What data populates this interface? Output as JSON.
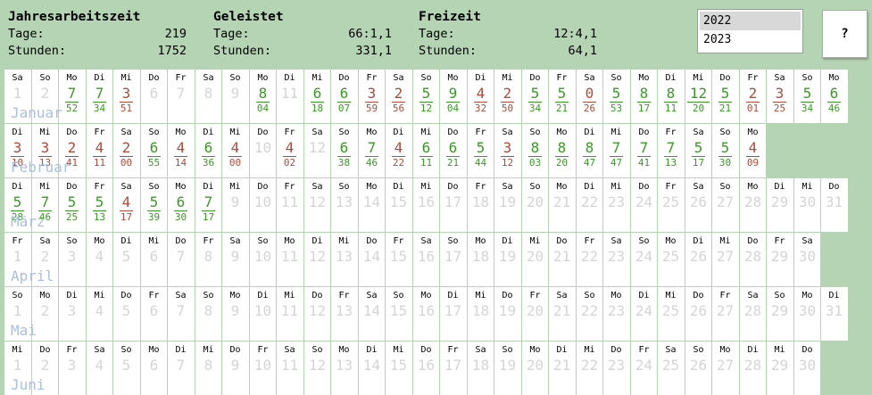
{
  "summary": [
    {
      "title": "Jahresarbeitszeit",
      "tage_label": "Tage:",
      "tage": "219",
      "stunden_label": "Stunden:",
      "stunden": "1752"
    },
    {
      "title": "Geleistet",
      "tage_label": "Tage:",
      "tage": "66:1,1",
      "stunden_label": "Stunden:",
      "stunden": "331,1"
    },
    {
      "title": "Freizeit",
      "tage_label": "Tage:",
      "tage": "12:4,1",
      "stunden_label": "Stunden:",
      "stunden": "64,1"
    }
  ],
  "years": [
    "2022",
    "2023"
  ],
  "selected_year": "2022",
  "help_label": "?",
  "colors": {
    "green": "#3a9a26",
    "red": "#b24a3a",
    "background": "#b4d4b3",
    "future_day": "#d5d5d5",
    "month_label": "#a9bfe0"
  },
  "months": [
    {
      "name": "Januar",
      "days": [
        {
          "d": 1,
          "wd": "Sa"
        },
        {
          "d": 2,
          "wd": "So"
        },
        {
          "d": 3,
          "wd": "Mo",
          "h": "7",
          "m": "52",
          "c": "g"
        },
        {
          "d": 4,
          "wd": "Di",
          "h": "7",
          "m": "34",
          "c": "g"
        },
        {
          "d": 5,
          "wd": "Mi",
          "h": "3",
          "m": "51",
          "c": "r"
        },
        {
          "d": 6,
          "wd": "Do"
        },
        {
          "d": 7,
          "wd": "Fr"
        },
        {
          "d": 8,
          "wd": "Sa"
        },
        {
          "d": 9,
          "wd": "So"
        },
        {
          "d": 10,
          "wd": "Mo",
          "h": "8",
          "m": "04",
          "c": "g"
        },
        {
          "d": 11,
          "wd": "Di"
        },
        {
          "d": 12,
          "wd": "Mi",
          "h": "6",
          "m": "18",
          "c": "g"
        },
        {
          "d": 13,
          "wd": "Do",
          "h": "6",
          "m": "07",
          "c": "g"
        },
        {
          "d": 14,
          "wd": "Fr",
          "h": "3",
          "m": "59",
          "c": "r"
        },
        {
          "d": 15,
          "wd": "Sa",
          "h": "2",
          "m": "56",
          "c": "r"
        },
        {
          "d": 16,
          "wd": "So",
          "h": "5",
          "m": "12",
          "c": "g"
        },
        {
          "d": 17,
          "wd": "Mo",
          "h": "9",
          "m": "04",
          "c": "g"
        },
        {
          "d": 18,
          "wd": "Di",
          "h": "4",
          "m": "32",
          "c": "r"
        },
        {
          "d": 19,
          "wd": "Mi",
          "h": "2",
          "m": "50",
          "c": "r"
        },
        {
          "d": 20,
          "wd": "Do",
          "h": "5",
          "m": "34",
          "c": "g"
        },
        {
          "d": 21,
          "wd": "Fr",
          "h": "5",
          "m": "21",
          "c": "g"
        },
        {
          "d": 22,
          "wd": "Sa",
          "h": "0",
          "m": "26",
          "c": "r"
        },
        {
          "d": 23,
          "wd": "So",
          "h": "5",
          "m": "53",
          "c": "g"
        },
        {
          "d": 24,
          "wd": "Mo",
          "h": "8",
          "m": "17",
          "c": "g"
        },
        {
          "d": 25,
          "wd": "Di",
          "h": "8",
          "m": "11",
          "c": "g"
        },
        {
          "d": 26,
          "wd": "Mi",
          "h": "12",
          "m": "20",
          "c": "g"
        },
        {
          "d": 27,
          "wd": "Do",
          "h": "5",
          "m": "21",
          "c": "g"
        },
        {
          "d": 28,
          "wd": "Fr",
          "h": "2",
          "m": "01",
          "c": "r"
        },
        {
          "d": 29,
          "wd": "Sa",
          "h": "3",
          "m": "25",
          "c": "r"
        },
        {
          "d": 30,
          "wd": "So",
          "h": "5",
          "m": "34",
          "c": "g"
        },
        {
          "d": 31,
          "wd": "Mo",
          "h": "6",
          "m": "46",
          "c": "g"
        }
      ]
    },
    {
      "name": "Februar",
      "days": [
        {
          "d": 1,
          "wd": "Di",
          "h": "3",
          "m": "10",
          "c": "r"
        },
        {
          "d": 2,
          "wd": "Mi",
          "h": "3",
          "m": "13",
          "c": "r"
        },
        {
          "d": 3,
          "wd": "Do",
          "h": "2",
          "m": "41",
          "c": "r"
        },
        {
          "d": 4,
          "wd": "Fr",
          "h": "4",
          "m": "11",
          "c": "r"
        },
        {
          "d": 5,
          "wd": "Sa",
          "h": "2",
          "m": "00",
          "c": "r"
        },
        {
          "d": 6,
          "wd": "So",
          "h": "6",
          "m": "55",
          "c": "g"
        },
        {
          "d": 7,
          "wd": "Mo",
          "h": "4",
          "m": "14",
          "c": "r"
        },
        {
          "d": 8,
          "wd": "Di",
          "h": "6",
          "m": "36",
          "c": "g"
        },
        {
          "d": 9,
          "wd": "Mi",
          "h": "4",
          "m": "00",
          "c": "r"
        },
        {
          "d": 10,
          "wd": "Do"
        },
        {
          "d": 11,
          "wd": "Fr",
          "h": "4",
          "m": "02",
          "c": "r"
        },
        {
          "d": 12,
          "wd": "Sa"
        },
        {
          "d": 13,
          "wd": "So",
          "h": "6",
          "m": "38",
          "c": "g"
        },
        {
          "d": 14,
          "wd": "Mo",
          "h": "7",
          "m": "46",
          "c": "g"
        },
        {
          "d": 15,
          "wd": "Di",
          "h": "4",
          "m": "22",
          "c": "r"
        },
        {
          "d": 16,
          "wd": "Mi",
          "h": "6",
          "m": "11",
          "c": "g"
        },
        {
          "d": 17,
          "wd": "Do",
          "h": "6",
          "m": "21",
          "c": "g"
        },
        {
          "d": 18,
          "wd": "Fr",
          "h": "5",
          "m": "44",
          "c": "g"
        },
        {
          "d": 19,
          "wd": "Sa",
          "h": "3",
          "m": "12",
          "c": "r"
        },
        {
          "d": 20,
          "wd": "So",
          "h": "8",
          "m": "03",
          "c": "g"
        },
        {
          "d": 21,
          "wd": "Mo",
          "h": "8",
          "m": "20",
          "c": "g"
        },
        {
          "d": 22,
          "wd": "Di",
          "h": "8",
          "m": "47",
          "c": "g"
        },
        {
          "d": 23,
          "wd": "Mi",
          "h": "7",
          "m": "47",
          "c": "g"
        },
        {
          "d": 24,
          "wd": "Do",
          "h": "7",
          "m": "41",
          "c": "g"
        },
        {
          "d": 25,
          "wd": "Fr",
          "h": "7",
          "m": "13",
          "c": "g"
        },
        {
          "d": 26,
          "wd": "Sa",
          "h": "5",
          "m": "17",
          "c": "g"
        },
        {
          "d": 27,
          "wd": "So",
          "h": "5",
          "m": "30",
          "c": "g"
        },
        {
          "d": 28,
          "wd": "Mo",
          "h": "4",
          "m": "09",
          "c": "r"
        }
      ]
    },
    {
      "name": "März",
      "days": [
        {
          "d": 1,
          "wd": "Di",
          "h": "5",
          "m": "28",
          "c": "g"
        },
        {
          "d": 2,
          "wd": "Mi",
          "h": "7",
          "m": "46",
          "c": "g"
        },
        {
          "d": 3,
          "wd": "Do",
          "h": "5",
          "m": "25",
          "c": "g"
        },
        {
          "d": 4,
          "wd": "Fr",
          "h": "5",
          "m": "13",
          "c": "g"
        },
        {
          "d": 5,
          "wd": "Sa",
          "h": "4",
          "m": "17",
          "c": "r"
        },
        {
          "d": 6,
          "wd": "So",
          "h": "5",
          "m": "39",
          "c": "g"
        },
        {
          "d": 7,
          "wd": "Mo",
          "h": "6",
          "m": "30",
          "c": "g"
        },
        {
          "d": 8,
          "wd": "Di",
          "h": "7",
          "m": "17",
          "c": "g"
        },
        {
          "d": 9,
          "wd": "Mi"
        },
        {
          "d": 10,
          "wd": "Do"
        },
        {
          "d": 11,
          "wd": "Fr"
        },
        {
          "d": 12,
          "wd": "Sa"
        },
        {
          "d": 13,
          "wd": "So"
        },
        {
          "d": 14,
          "wd": "Mo"
        },
        {
          "d": 15,
          "wd": "Di"
        },
        {
          "d": 16,
          "wd": "Mi"
        },
        {
          "d": 17,
          "wd": "Do"
        },
        {
          "d": 18,
          "wd": "Fr"
        },
        {
          "d": 19,
          "wd": "Sa"
        },
        {
          "d": 20,
          "wd": "So"
        },
        {
          "d": 21,
          "wd": "Mo"
        },
        {
          "d": 22,
          "wd": "Di"
        },
        {
          "d": 23,
          "wd": "Mi"
        },
        {
          "d": 24,
          "wd": "Do"
        },
        {
          "d": 25,
          "wd": "Fr"
        },
        {
          "d": 26,
          "wd": "Sa"
        },
        {
          "d": 27,
          "wd": "So"
        },
        {
          "d": 28,
          "wd": "Mo"
        },
        {
          "d": 29,
          "wd": "Di"
        },
        {
          "d": 30,
          "wd": "Mi"
        },
        {
          "d": 31,
          "wd": "Do"
        }
      ]
    },
    {
      "name": "April",
      "days": [
        {
          "d": 1,
          "wd": "Fr"
        },
        {
          "d": 2,
          "wd": "Sa"
        },
        {
          "d": 3,
          "wd": "So"
        },
        {
          "d": 4,
          "wd": "Mo"
        },
        {
          "d": 5,
          "wd": "Di"
        },
        {
          "d": 6,
          "wd": "Mi"
        },
        {
          "d": 7,
          "wd": "Do"
        },
        {
          "d": 8,
          "wd": "Fr"
        },
        {
          "d": 9,
          "wd": "Sa"
        },
        {
          "d": 10,
          "wd": "So"
        },
        {
          "d": 11,
          "wd": "Mo"
        },
        {
          "d": 12,
          "wd": "Di"
        },
        {
          "d": 13,
          "wd": "Mi"
        },
        {
          "d": 14,
          "wd": "Do"
        },
        {
          "d": 15,
          "wd": "Fr"
        },
        {
          "d": 16,
          "wd": "Sa"
        },
        {
          "d": 17,
          "wd": "So"
        },
        {
          "d": 18,
          "wd": "Mo"
        },
        {
          "d": 19,
          "wd": "Di"
        },
        {
          "d": 20,
          "wd": "Mi"
        },
        {
          "d": 21,
          "wd": "Do"
        },
        {
          "d": 22,
          "wd": "Fr"
        },
        {
          "d": 23,
          "wd": "Sa"
        },
        {
          "d": 24,
          "wd": "So"
        },
        {
          "d": 25,
          "wd": "Mo"
        },
        {
          "d": 26,
          "wd": "Di"
        },
        {
          "d": 27,
          "wd": "Mi"
        },
        {
          "d": 28,
          "wd": "Do"
        },
        {
          "d": 29,
          "wd": "Fr"
        },
        {
          "d": 30,
          "wd": "Sa"
        }
      ]
    },
    {
      "name": "Mai",
      "days": [
        {
          "d": 1,
          "wd": "So"
        },
        {
          "d": 2,
          "wd": "Mo"
        },
        {
          "d": 3,
          "wd": "Di"
        },
        {
          "d": 4,
          "wd": "Mi"
        },
        {
          "d": 5,
          "wd": "Do"
        },
        {
          "d": 6,
          "wd": "Fr"
        },
        {
          "d": 7,
          "wd": "Sa"
        },
        {
          "d": 8,
          "wd": "So"
        },
        {
          "d": 9,
          "wd": "Mo"
        },
        {
          "d": 10,
          "wd": "Di"
        },
        {
          "d": 11,
          "wd": "Mi"
        },
        {
          "d": 12,
          "wd": "Do"
        },
        {
          "d": 13,
          "wd": "Fr"
        },
        {
          "d": 14,
          "wd": "Sa"
        },
        {
          "d": 15,
          "wd": "So"
        },
        {
          "d": 16,
          "wd": "Mo"
        },
        {
          "d": 17,
          "wd": "Di"
        },
        {
          "d": 18,
          "wd": "Mi"
        },
        {
          "d": 19,
          "wd": "Do"
        },
        {
          "d": 20,
          "wd": "Fr"
        },
        {
          "d": 21,
          "wd": "Sa"
        },
        {
          "d": 22,
          "wd": "So"
        },
        {
          "d": 23,
          "wd": "Mo"
        },
        {
          "d": 24,
          "wd": "Di"
        },
        {
          "d": 25,
          "wd": "Mi"
        },
        {
          "d": 26,
          "wd": "Do"
        },
        {
          "d": 27,
          "wd": "Fr"
        },
        {
          "d": 28,
          "wd": "Sa"
        },
        {
          "d": 29,
          "wd": "So"
        },
        {
          "d": 30,
          "wd": "Mo"
        },
        {
          "d": 31,
          "wd": "Di"
        }
      ]
    },
    {
      "name": "Juni",
      "days": [
        {
          "d": 1,
          "wd": "Mi"
        },
        {
          "d": 2,
          "wd": "Do"
        },
        {
          "d": 3,
          "wd": "Fr"
        },
        {
          "d": 4,
          "wd": "Sa"
        },
        {
          "d": 5,
          "wd": "So"
        },
        {
          "d": 6,
          "wd": "Mo"
        },
        {
          "d": 7,
          "wd": "Di"
        },
        {
          "d": 8,
          "wd": "Mi"
        },
        {
          "d": 9,
          "wd": "Do"
        },
        {
          "d": 10,
          "wd": "Fr"
        },
        {
          "d": 11,
          "wd": "Sa"
        },
        {
          "d": 12,
          "wd": "So"
        },
        {
          "d": 13,
          "wd": "Mo"
        },
        {
          "d": 14,
          "wd": "Di"
        },
        {
          "d": 15,
          "wd": "Mi"
        },
        {
          "d": 16,
          "wd": "Do"
        },
        {
          "d": 17,
          "wd": "Fr"
        },
        {
          "d": 18,
          "wd": "Sa"
        },
        {
          "d": 19,
          "wd": "So"
        },
        {
          "d": 20,
          "wd": "Mo"
        },
        {
          "d": 21,
          "wd": "Di"
        },
        {
          "d": 22,
          "wd": "Mi"
        },
        {
          "d": 23,
          "wd": "Do"
        },
        {
          "d": 24,
          "wd": "Fr"
        },
        {
          "d": 25,
          "wd": "Sa"
        },
        {
          "d": 26,
          "wd": "So"
        },
        {
          "d": 27,
          "wd": "Mo"
        },
        {
          "d": 28,
          "wd": "Di"
        },
        {
          "d": 29,
          "wd": "Mi"
        },
        {
          "d": 30,
          "wd": "Do"
        }
      ]
    }
  ]
}
